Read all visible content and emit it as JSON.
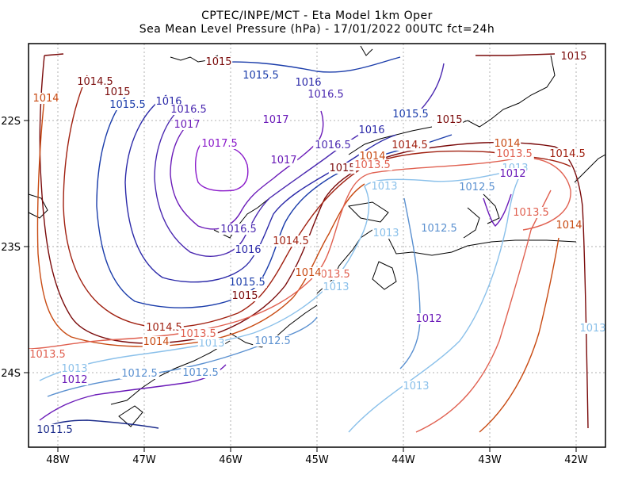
{
  "title_line1": "CPTEC/INPE/MCT -  Eta Model 1km Oper",
  "title_line2": "Sea Mean Level Pressure (hPa) - 17/01/2022 00UTC fct=24h",
  "axes": {
    "lon_ticks": [
      "48W",
      "47W",
      "46W",
      "45W",
      "44W",
      "43W",
      "42W"
    ],
    "lat_ticks": [
      "22S",
      "23S",
      "24S"
    ]
  },
  "contour_labels": [
    {
      "text": "1015",
      "color": "#7a0a0a"
    },
    {
      "text": "1014.5",
      "color": "#7a0a0a"
    },
    {
      "text": "1014",
      "color": "#c84a12"
    },
    {
      "text": "1015",
      "color": "#7a0a0a"
    },
    {
      "text": "1015.5",
      "color": "#1a3caa"
    },
    {
      "text": "1016",
      "color": "#2a28a8"
    },
    {
      "text": "1016.5",
      "color": "#4a28b0"
    },
    {
      "text": "1017",
      "color": "#6a1ab8"
    },
    {
      "text": "1017.5",
      "color": "#8a1aca"
    },
    {
      "text": "1015.5",
      "color": "#1a3caa"
    },
    {
      "text": "1016",
      "color": "#2a28a8"
    },
    {
      "text": "1016.5",
      "color": "#4a28b0"
    },
    {
      "text": "1017",
      "color": "#6a1ab8"
    },
    {
      "text": "1017",
      "color": "#6a1ab8"
    },
    {
      "text": "1016.5",
      "color": "#4a28b0"
    },
    {
      "text": "1016",
      "color": "#2a28a8"
    },
    {
      "text": "1015.5",
      "color": "#1a3caa"
    },
    {
      "text": "1015",
      "color": "#7a0a0a"
    },
    {
      "text": "1015",
      "color": "#7a0a0a"
    },
    {
      "text": "1014.5",
      "color": "#a02010"
    },
    {
      "text": "1014",
      "color": "#c84a12"
    },
    {
      "text": "1013.5",
      "color": "#e06050"
    },
    {
      "text": "1014.5",
      "color": "#a02010"
    },
    {
      "text": "1015",
      "color": "#7a0a0a"
    },
    {
      "text": "1014",
      "color": "#c84a12"
    },
    {
      "text": "1013.5",
      "color": "#e06050"
    },
    {
      "text": "1013",
      "color": "#8ac0ea"
    },
    {
      "text": "1012",
      "color": "#6a1ab8"
    },
    {
      "text": "1012.5",
      "color": "#5a90d0"
    },
    {
      "text": "1013",
      "color": "#8ac0ea"
    },
    {
      "text": "1013.5",
      "color": "#e06050"
    },
    {
      "text": "1014",
      "color": "#c84a12"
    },
    {
      "text": "1013",
      "color": "#8ac0ea"
    },
    {
      "text": "1012.5",
      "color": "#5a90d0"
    },
    {
      "text": "1013",
      "color": "#8ac0ea"
    },
    {
      "text": "1013.5",
      "color": "#e06050"
    },
    {
      "text": "1014",
      "color": "#c84a12"
    },
    {
      "text": "1014.5",
      "color": "#a02010"
    },
    {
      "text": "1016.5",
      "color": "#4a28b0"
    },
    {
      "text": "1016",
      "color": "#2a28a8"
    },
    {
      "text": "1015.5",
      "color": "#1a3caa"
    },
    {
      "text": "1015",
      "color": "#7a0a0a"
    },
    {
      "text": "1014.5",
      "color": "#a02010"
    },
    {
      "text": "1014",
      "color": "#c84a12"
    },
    {
      "text": "1013.5",
      "color": "#e06050"
    },
    {
      "text": "1013",
      "color": "#8ac0ea"
    },
    {
      "text": "1012.5",
      "color": "#5a90d0"
    },
    {
      "text": "1013",
      "color": "#8ac0ea"
    },
    {
      "text": "1012.5",
      "color": "#5a90d0"
    },
    {
      "text": "1013.5",
      "color": "#e06050"
    },
    {
      "text": "1013",
      "color": "#8ac0ea"
    },
    {
      "text": "1012",
      "color": "#6a1ab8"
    },
    {
      "text": "1012.5",
      "color": "#5a90d0"
    },
    {
      "text": "1012",
      "color": "#6a1ab8"
    },
    {
      "text": "1011.5",
      "color": "#1a2a8a"
    },
    {
      "text": "1013",
      "color": "#8ac0ea"
    },
    {
      "text": "1015",
      "color": "#7a0a0a"
    }
  ]
}
